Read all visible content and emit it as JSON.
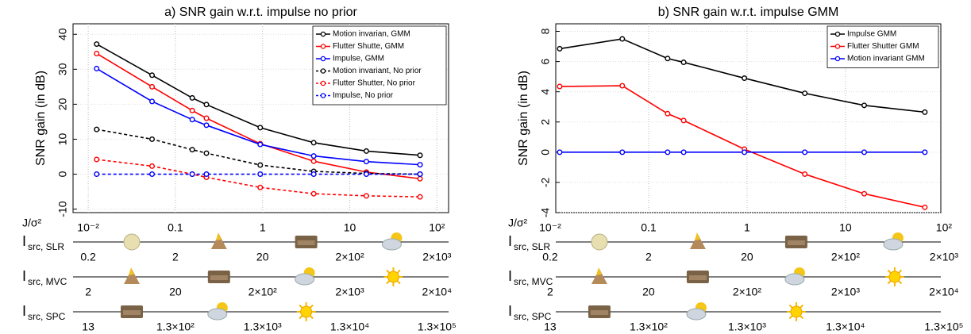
{
  "chart_data": [
    {
      "type": "line",
      "title": "a) SNR gain w.r.t. impulse no prior",
      "ylabel": "SNR gain (in dB)",
      "xlabel": "J/σ²",
      "xlog": true,
      "xlim": [
        0.0067,
        136
      ],
      "xticks": [
        {
          "value": 0.01,
          "label": "10⁻²"
        },
        0.1,
        1,
        10,
        {
          "value": 100,
          "label": "10²"
        }
      ],
      "ylim": [
        -11,
        43
      ],
      "yticks": [
        -10,
        0,
        10,
        20,
        30,
        40
      ],
      "grid": true,
      "legend": "upper right",
      "x": [
        0.0125,
        0.054,
        0.156,
        0.227,
        0.94,
        3.86,
        15.5,
        64
      ],
      "series": [
        {
          "name": "Motion invarian, GMM",
          "color": "#000000",
          "linestyle": "solid",
          "values": [
            37.2,
            28.3,
            21.8,
            19.9,
            13.3,
            9.0,
            6.6,
            5.4
          ]
        },
        {
          "name": "Flutter Shutte, GMM",
          "color": "#ff0000",
          "linestyle": "solid",
          "values": [
            34.5,
            25.0,
            18.2,
            16.0,
            8.7,
            3.7,
            0.6,
            -1.3
          ]
        },
        {
          "name": "Impulse, GMM",
          "color": "#0000ff",
          "linestyle": "solid",
          "values": [
            30.2,
            20.8,
            15.6,
            14.0,
            8.5,
            5.2,
            3.6,
            2.7
          ]
        },
        {
          "name": "Motion invariant, No prior",
          "color": "#000000",
          "linestyle": "dashed",
          "values": [
            12.8,
            10.0,
            7.0,
            6.0,
            2.6,
            0.8,
            0.2,
            0.0
          ]
        },
        {
          "name": "Flutter Shutter, No prior",
          "color": "#ff0000",
          "linestyle": "dashed",
          "values": [
            4.2,
            2.3,
            0.0,
            -0.9,
            -3.8,
            -5.6,
            -6.2,
            -6.5
          ]
        },
        {
          "name": "Impulse, No prior",
          "color": "#0000ff",
          "linestyle": "dashed",
          "values": [
            0,
            0,
            0,
            0,
            0,
            0,
            0,
            0
          ]
        }
      ],
      "scales": [
        {
          "label": "I",
          "subscript": "src, SLR",
          "labels": [
            "0.2",
            "2",
            "20",
            "2×10²",
            "2×10³"
          ]
        },
        {
          "label": "I",
          "subscript": "src, MVC",
          "labels": [
            "2",
            "20",
            "2×10²",
            "2×10³",
            "2×10⁴"
          ]
        },
        {
          "label": "I",
          "subscript": "src, SPC",
          "labels": [
            "13",
            "1.3×10²",
            "1.3×10³",
            "1.3×10⁴",
            "1.3×10⁵"
          ]
        }
      ]
    },
    {
      "type": "line",
      "title": "b) SNR gain w.r.t. impulse GMM",
      "ylabel": "SNR gain (in dB)",
      "xlabel": "J/σ²",
      "xlog": true,
      "xlim": [
        0.0114,
        93
      ],
      "xticks": [
        {
          "value": 0.01,
          "label": "10⁻²"
        },
        0.1,
        1,
        10,
        {
          "value": 100,
          "label": "10²"
        }
      ],
      "ylim": [
        -4,
        8.5
      ],
      "yticks": [
        -4,
        -2,
        0,
        2,
        4,
        6,
        8
      ],
      "grid": true,
      "legend": "upper right",
      "x": [
        0.0125,
        0.054,
        0.156,
        0.227,
        0.94,
        3.86,
        15.5,
        64
      ],
      "series": [
        {
          "name": "Impulse GMM",
          "color": "#000000",
          "linestyle": "solid",
          "values": [
            6.85,
            7.5,
            6.2,
            5.95,
            4.9,
            3.9,
            3.1,
            2.65
          ]
        },
        {
          "name": "Flutter Shutter GMM",
          "color": "#ff0000",
          "linestyle": "solid",
          "values": [
            4.35,
            4.4,
            2.55,
            2.1,
            0.2,
            -1.45,
            -2.75,
            -3.65
          ]
        },
        {
          "name": "Motion invariant GMM",
          "color": "#0000ff",
          "linestyle": "solid",
          "values": [
            0,
            0,
            0,
            0,
            0,
            0,
            0,
            0
          ]
        }
      ],
      "scales": [
        {
          "label": "I",
          "subscript": "src, SLR",
          "labels": [
            "0.2",
            "2",
            "20",
            "2×10²",
            "2×10³"
          ]
        },
        {
          "label": "I",
          "subscript": "src, MVC",
          "labels": [
            "2",
            "20",
            "2×10²",
            "2×10³",
            "2×10⁴"
          ]
        },
        {
          "label": "I",
          "subscript": "src, SPC",
          "labels": [
            "13",
            "1.3×10²",
            "1.3×10³",
            "1.3×10⁴",
            "1.3×10⁵"
          ]
        }
      ]
    }
  ]
}
